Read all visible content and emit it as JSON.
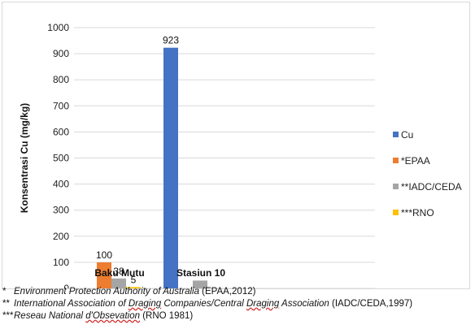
{
  "chart_data": {
    "type": "bar",
    "ylabel": "Konsentrasi Cu (mg/kg)",
    "ylim": [
      0,
      1000
    ],
    "yticks": [
      0,
      100,
      200,
      300,
      400,
      500,
      600,
      700,
      800,
      900,
      1000
    ],
    "grid": true,
    "legend_position": "right",
    "categories": [
      "Baku Mutu",
      "Stasiun 10"
    ],
    "series": [
      {
        "name": "Cu",
        "color": "#4472c4",
        "values": [
          null,
          923
        ],
        "labels": [
          "",
          "923"
        ]
      },
      {
        "name": "*EPAA",
        "color": "#ed7d31",
        "values": [
          100,
          null
        ],
        "labels": [
          "100",
          ""
        ]
      },
      {
        "name": "**IADC/CEDA",
        "color": "#a5a5a5",
        "values": [
          38,
          30
        ],
        "labels": [
          "38",
          ""
        ]
      },
      {
        "name": "***RNO",
        "color": "#ffc000",
        "values": [
          5,
          null
        ],
        "labels": [
          "5",
          ""
        ]
      }
    ]
  },
  "footnotes": [
    {
      "mark": "*",
      "parts": [
        {
          "t": "Environment Protection Authority of Australia",
          "s": "ital"
        },
        {
          "t": " (EPAA,2012)",
          "s": ""
        }
      ]
    },
    {
      "mark": "**",
      "parts": [
        {
          "t": "International Association of ",
          "s": "ital"
        },
        {
          "t": "Draging",
          "s": "ital-wavy"
        },
        {
          "t": " Companies/Central ",
          "s": "ital"
        },
        {
          "t": "Draging",
          "s": "ital-wavy"
        },
        {
          "t": " Association",
          "s": "ital"
        },
        {
          "t": " (IADC/CEDA,1997)",
          "s": ""
        }
      ]
    },
    {
      "mark": "***",
      "parts": [
        {
          "t": "Reseau National ",
          "s": "ital"
        },
        {
          "t": "d'Obsevation",
          "s": "ital-wavy"
        },
        {
          "t": " (RNO 1981)",
          "s": ""
        }
      ]
    }
  ]
}
